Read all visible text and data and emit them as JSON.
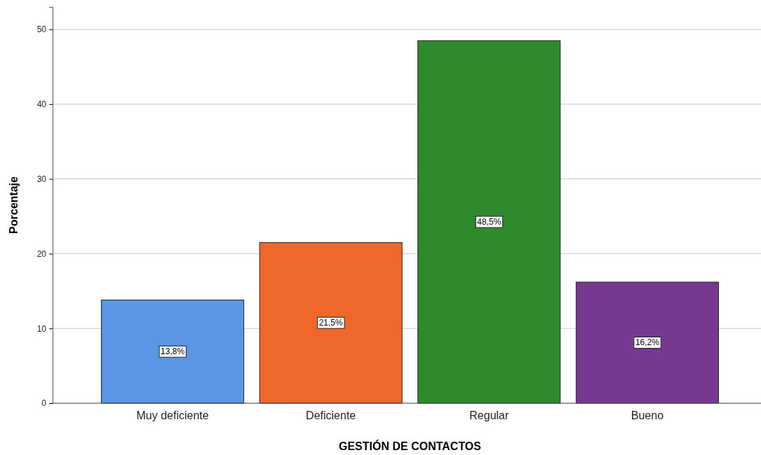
{
  "chart_data": {
    "type": "bar",
    "xlabel": "GESTIÓN DE CONTACTOS",
    "ylabel": "Porcentaje",
    "categories": [
      "Muy deficiente",
      "Deficiente",
      "Regular",
      "Bueno"
    ],
    "values": [
      13.8,
      21.5,
      48.5,
      16.2
    ],
    "colors": [
      "#5a96e3",
      "#f0672a",
      "#2d8a2d",
      "#77398f"
    ],
    "value_labels": [
      "13,8%",
      "21,5%",
      "48,5%",
      "16,2%"
    ],
    "ylim": [
      0,
      53
    ],
    "yticks": [
      0,
      10,
      20,
      30,
      40,
      50
    ],
    "grid": "y"
  }
}
